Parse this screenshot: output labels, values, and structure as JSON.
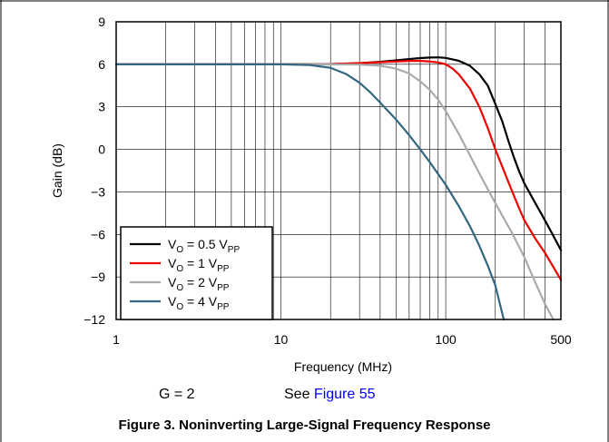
{
  "chart_data": {
    "type": "line",
    "xlabel": "Frequency (MHz)",
    "ylabel": "Gain (dB)",
    "xscale": "log",
    "xlim": [
      1,
      500
    ],
    "ylim": [
      -12,
      9
    ],
    "x_ticks": [
      1,
      10,
      100,
      500
    ],
    "y_ticks": [
      -12,
      -9,
      -6,
      -3,
      0,
      3,
      6,
      9
    ],
    "x_tick_labels": [
      "1",
      "10",
      "100",
      "500"
    ],
    "y_tick_labels": [
      "−12",
      "−9",
      "−6",
      "−3",
      "0",
      "3",
      "6",
      "9"
    ],
    "grid": true,
    "legend_placement": "bottom-left",
    "series": [
      {
        "name": "V_O = 0.5 V_PP",
        "legend": {
          "main": "V",
          "sub1": "O",
          "mid": " = 0.5 V",
          "sub2": "PP"
        },
        "color": "#000000",
        "x": [
          1,
          10,
          20,
          30,
          40,
          50,
          60,
          70,
          80,
          90,
          100,
          120,
          140,
          160,
          180,
          200,
          220,
          240,
          260,
          280,
          300,
          350,
          400,
          450,
          500
        ],
        "y": [
          6,
          6,
          6.02,
          6.08,
          6.18,
          6.28,
          6.37,
          6.44,
          6.48,
          6.49,
          6.45,
          6.25,
          5.9,
          5.3,
          4.5,
          3.2,
          2.0,
          0.6,
          -0.6,
          -1.6,
          -2.4,
          -3.8,
          -5.0,
          -6.1,
          -7.1
        ]
      },
      {
        "name": "V_O = 1 V_PP",
        "legend": {
          "main": "V",
          "sub1": "O",
          "mid": " = 1 V",
          "sub2": "PP"
        },
        "color": "#ee0000",
        "x": [
          1,
          10,
          20,
          30,
          40,
          50,
          60,
          70,
          80,
          90,
          100,
          110,
          120,
          140,
          160,
          180,
          200,
          220,
          240,
          260,
          280,
          300,
          350,
          400,
          450,
          500
        ],
        "y": [
          6,
          6,
          6.02,
          6.08,
          6.15,
          6.2,
          6.24,
          6.24,
          6.2,
          6.13,
          6.0,
          5.7,
          5.3,
          4.3,
          3.0,
          1.5,
          0.0,
          -1.2,
          -2.3,
          -3.3,
          -4.2,
          -5.0,
          -6.3,
          -7.3,
          -8.3,
          -9.2
        ]
      },
      {
        "name": "V_O = 2 V_PP",
        "legend": {
          "main": "V",
          "sub1": "O",
          "mid": " = 2 V",
          "sub2": "PP"
        },
        "color": "#aaaaaa",
        "x": [
          1,
          10,
          20,
          30,
          40,
          50,
          60,
          70,
          80,
          90,
          100,
          120,
          140,
          160,
          180,
          200,
          250,
          300,
          350,
          400,
          450
        ],
        "y": [
          6,
          6,
          6.0,
          5.98,
          5.9,
          5.7,
          5.35,
          4.8,
          4.2,
          3.5,
          2.7,
          1.1,
          -0.4,
          -1.7,
          -2.8,
          -3.8,
          -5.8,
          -7.6,
          -9.4,
          -10.9,
          -12
        ]
      },
      {
        "name": "V_O = 4 V_PP",
        "legend": {
          "main": "V",
          "sub1": "O",
          "mid": " = 4 V",
          "sub2": "PP"
        },
        "color": "#336680",
        "x": [
          1,
          10,
          15,
          20,
          25,
          30,
          35,
          40,
          50,
          60,
          70,
          80,
          100,
          120,
          140,
          160,
          180,
          200,
          225
        ],
        "y": [
          6,
          6,
          5.95,
          5.75,
          5.3,
          4.7,
          4.0,
          3.3,
          2.1,
          1.0,
          0.0,
          -0.9,
          -2.5,
          -4.0,
          -5.4,
          -6.8,
          -8.2,
          -9.6,
          -12
        ]
      }
    ]
  },
  "notes": {
    "gain_label": "G = 2",
    "see_label": "See ",
    "see_link": "Figure 55"
  },
  "caption": "Figure 3. Noninverting Large-Signal Frequency Response"
}
